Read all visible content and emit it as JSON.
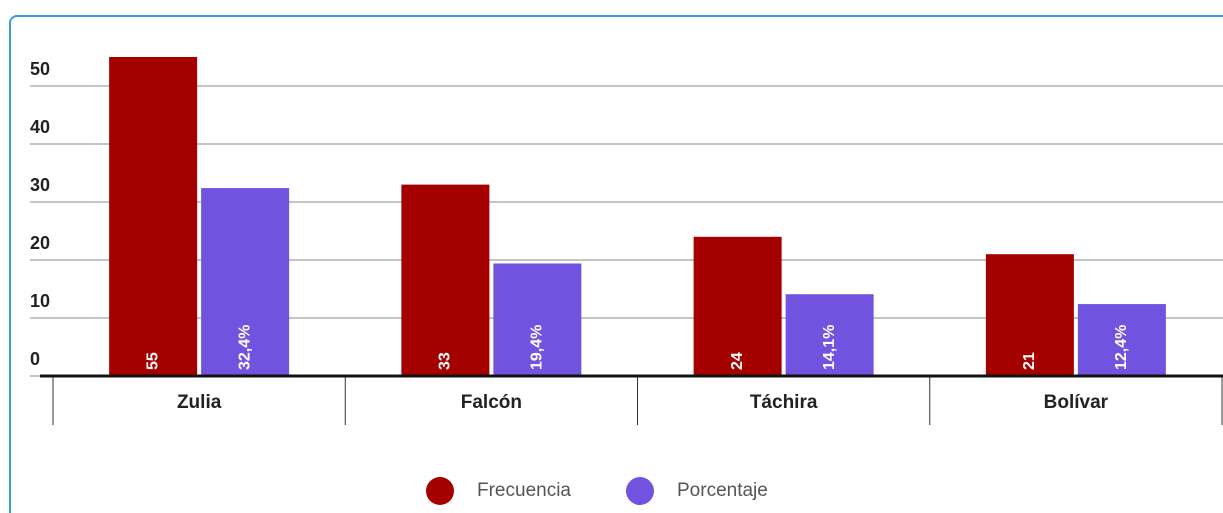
{
  "chart_data": {
    "type": "bar",
    "categories": [
      "Zulia",
      "Falcón",
      "Táchira",
      "Bolívar"
    ],
    "series": [
      {
        "name": "Frecuencia",
        "color": "#a50000",
        "values": [
          55,
          33,
          24,
          21
        ]
      },
      {
        "name": "Porcentaje",
        "color": "#7153df",
        "values": [
          32.4,
          19.4,
          14.1,
          12.4
        ],
        "value_labels": [
          "32,4%",
          "19,4%",
          "14,1%",
          "12,4%"
        ]
      }
    ],
    "ylim": [
      0,
      55
    ],
    "yticks": [
      0,
      10,
      20,
      30,
      40,
      50
    ],
    "grid": true,
    "legend": "bottom"
  }
}
